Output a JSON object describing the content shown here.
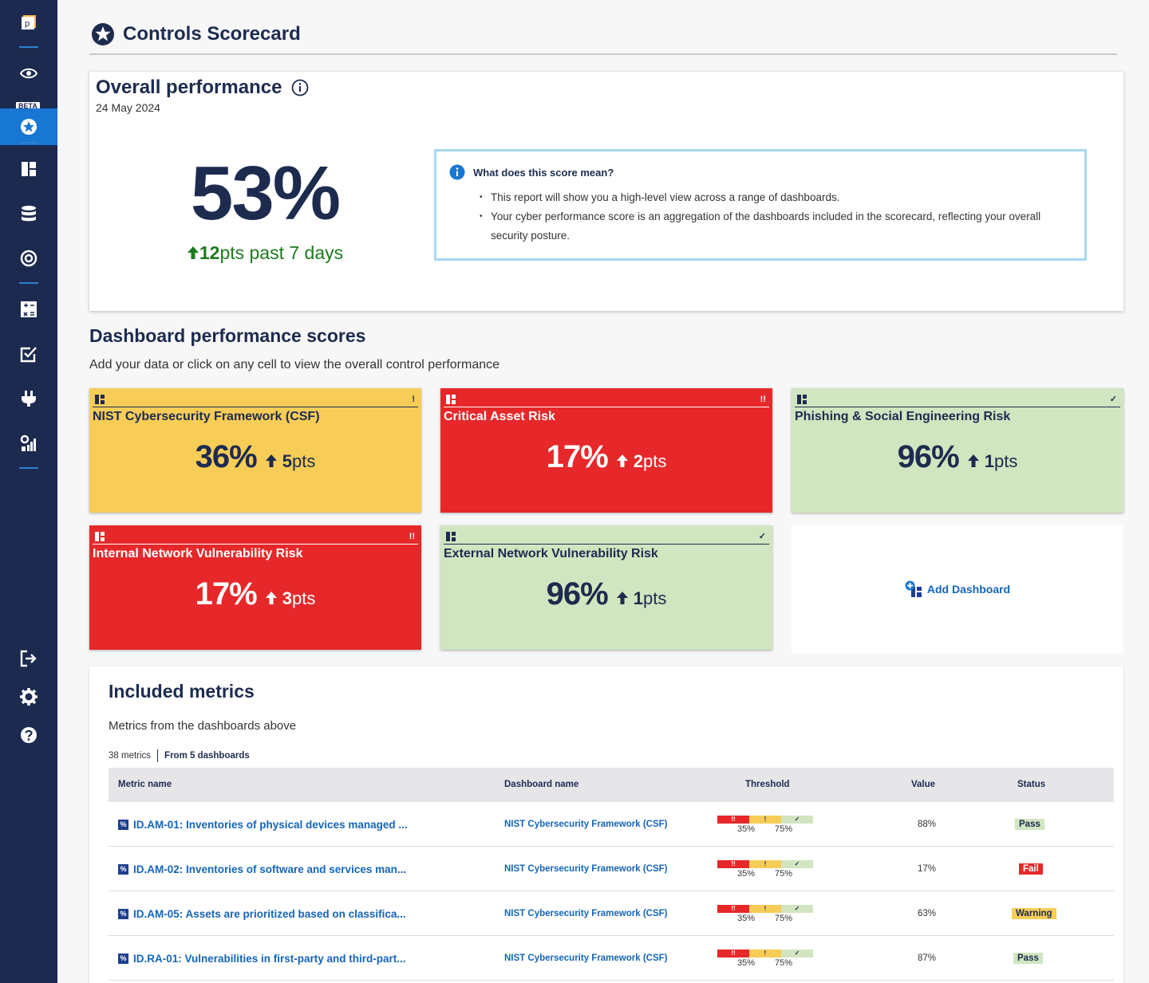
{
  "page": {
    "title": "Controls Scorecard"
  },
  "sidebar": {
    "logo_letter": "p",
    "beta_label": "BETA",
    "items": [
      {
        "name": "eye-icon"
      },
      {
        "name": "star-icon"
      },
      {
        "name": "dashboard-icon"
      },
      {
        "name": "database-icon"
      },
      {
        "name": "target-icon"
      },
      {
        "name": "calculator-icon"
      },
      {
        "name": "checkbox-icon"
      },
      {
        "name": "plug-icon"
      },
      {
        "name": "settings-chart-icon"
      },
      {
        "name": "logout-icon"
      },
      {
        "name": "gear-icon"
      },
      {
        "name": "help-icon"
      }
    ]
  },
  "overall": {
    "title": "Overall performance",
    "date": "24 May 2024",
    "score": "53%",
    "delta_value": "12",
    "delta_text": "pts past 7 days",
    "info_title": "What does this score mean?",
    "info_points": [
      "This report will show you a high-level view across a range of dashboards.",
      "Your cyber performance score is an aggregation of the dashboards included in the scorecard, reflecting your overall security posture."
    ]
  },
  "dashboards": {
    "title": "Dashboard performance scores",
    "subtitle": "Add your data or click on any cell to view the overall control performance",
    "add_label": "Add Dashboard",
    "tiles": [
      {
        "name": "NIST Cybersecurity Framework (CSF)",
        "value": "36%",
        "delta": "5",
        "unit": "pts",
        "flag": "!",
        "status": "warning"
      },
      {
        "name": "Critical Asset Risk",
        "value": "17%",
        "delta": "2",
        "unit": "pts",
        "flag": "!!",
        "status": "fail"
      },
      {
        "name": "Phishing & Social Engineering Risk",
        "value": "96%",
        "delta": "1",
        "unit": "pts",
        "flag": "✓",
        "status": "pass"
      },
      {
        "name": "Internal Network Vulnerability Risk",
        "value": "17%",
        "delta": "3",
        "unit": "pts",
        "flag": "!!",
        "status": "fail"
      },
      {
        "name": "External Network Vulnerability Risk",
        "value": "96%",
        "delta": "1",
        "unit": "pts",
        "flag": "✓",
        "status": "pass"
      }
    ]
  },
  "metrics": {
    "title": "Included metrics",
    "subtitle": "Metrics from the dashboards above",
    "count": "38 metrics",
    "source": "From 5 dashboards",
    "columns": {
      "name": "Metric name",
      "dashboard": "Dashboard name",
      "threshold": "Threshold",
      "value": "Value",
      "status": "Status"
    },
    "threshold_marks": {
      "fail": "!!",
      "warn": "!",
      "pass": "✓",
      "low": "35%",
      "high": "75%"
    },
    "rows": [
      {
        "name": "ID.AM-01: Inventories of physical devices managed ...",
        "dashboard": "NIST Cybersecurity Framework (CSF)",
        "value": "88%",
        "status": "Pass",
        "kind": "pass"
      },
      {
        "name": "ID.AM-02: Inventories of software and services man...",
        "dashboard": "NIST Cybersecurity Framework (CSF)",
        "value": "17%",
        "status": "Fail",
        "kind": "fail"
      },
      {
        "name": "ID.AM-05: Assets are prioritized based on classifica...",
        "dashboard": "NIST Cybersecurity Framework (CSF)",
        "value": "63%",
        "status": "Warning",
        "kind": "warn"
      },
      {
        "name": "ID.RA-01: Vulnerabilities in first-party and third-part...",
        "dashboard": "NIST Cybersecurity Framework (CSF)",
        "value": "87%",
        "status": "Pass",
        "kind": "pass"
      }
    ]
  }
}
